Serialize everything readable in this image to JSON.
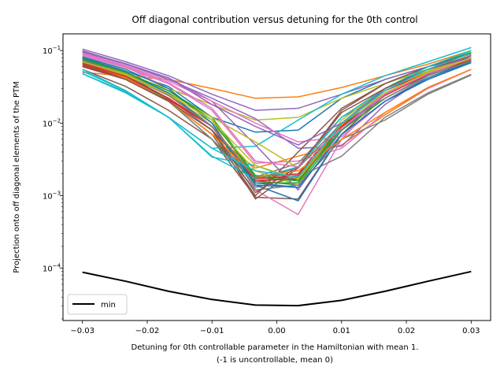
{
  "chart_data": {
    "type": "line",
    "title": "Off diagonal contribution versus detuning for the 0th control",
    "xlabel": "Detuning for 0th controllable parameter in the Hamiltonian with mean 1.",
    "xlabel2": "(-1 is uncontrollable, mean 0)",
    "ylabel": "Projection onto off diagonal elements of the PTM",
    "yscale": "log",
    "xlim": [
      -0.033,
      0.033
    ],
    "ylim": [
      1.9e-05,
      0.17
    ],
    "xticks": [
      -0.03,
      -0.02,
      -0.01,
      0.0,
      0.01,
      0.02,
      0.03
    ],
    "xtick_labels": [
      "−0.03",
      "−0.02",
      "−0.01",
      "0.00",
      "0.01",
      "0.02",
      "0.03"
    ],
    "yticks": [
      0.0001,
      0.001,
      0.01,
      0.1
    ],
    "ytick_labels": [
      "10",
      "10",
      "10",
      "10"
    ],
    "ytick_exponents": [
      "−4",
      "−3",
      "−2",
      "−1"
    ],
    "grid": false,
    "legend_position": "lower-left",
    "x": [
      -0.03,
      -0.0233,
      -0.0167,
      -0.01,
      -0.0033,
      0.0033,
      0.01,
      0.0167,
      0.0233,
      0.03
    ],
    "series": [
      {
        "color": "#1f77b4",
        "values": [
          0.08,
          0.052,
          0.032,
          0.012,
          0.0075,
          0.008,
          0.022,
          0.04,
          0.06,
          0.09
        ]
      },
      {
        "color": "#ff7f0e",
        "values": [
          0.05,
          0.045,
          0.04,
          0.03,
          0.022,
          0.023,
          0.031,
          0.045,
          0.065,
          0.1
        ]
      },
      {
        "color": "#2ca02c",
        "values": [
          0.075,
          0.048,
          0.025,
          0.009,
          0.0016,
          0.0014,
          0.008,
          0.022,
          0.045,
          0.075
        ]
      },
      {
        "color": "#d62728",
        "values": [
          0.06,
          0.04,
          0.02,
          0.008,
          0.0018,
          0.002,
          0.01,
          0.03,
          0.055,
          0.085
        ]
      },
      {
        "color": "#9467bd",
        "values": [
          0.105,
          0.07,
          0.045,
          0.025,
          0.015,
          0.016,
          0.025,
          0.04,
          0.06,
          0.08
        ]
      },
      {
        "color": "#8c564b",
        "values": [
          0.055,
          0.032,
          0.015,
          0.006,
          0.00095,
          0.0009,
          0.007,
          0.025,
          0.05,
          0.085
        ]
      },
      {
        "color": "#e377c2",
        "values": [
          0.09,
          0.06,
          0.03,
          0.01,
          0.0012,
          0.00055,
          0.006,
          0.025,
          0.05,
          0.08
        ]
      },
      {
        "color": "#7f7f7f",
        "values": [
          0.07,
          0.045,
          0.022,
          0.008,
          0.0013,
          0.0018,
          0.0035,
          0.012,
          0.026,
          0.047
        ]
      },
      {
        "color": "#bcbd22",
        "values": [
          0.065,
          0.045,
          0.03,
          0.018,
          0.011,
          0.012,
          0.022,
          0.035,
          0.055,
          0.075
        ]
      },
      {
        "color": "#17becf",
        "values": [
          0.048,
          0.026,
          0.012,
          0.0045,
          0.0048,
          0.011,
          0.025,
          0.045,
          0.07,
          0.11
        ]
      },
      {
        "color": "#1f77b4",
        "values": [
          0.072,
          0.048,
          0.025,
          0.009,
          0.0014,
          0.0013,
          0.007,
          0.02,
          0.04,
          0.068
        ]
      },
      {
        "color": "#ff7f0e",
        "values": [
          0.068,
          0.04,
          0.02,
          0.007,
          0.0024,
          0.0035,
          0.005,
          0.013,
          0.03,
          0.055
        ]
      },
      {
        "color": "#2ca02c",
        "values": [
          0.078,
          0.05,
          0.028,
          0.012,
          0.0019,
          0.0017,
          0.009,
          0.025,
          0.045,
          0.072
        ]
      },
      {
        "color": "#d62728",
        "values": [
          0.065,
          0.042,
          0.021,
          0.009,
          0.0016,
          0.0018,
          0.009,
          0.024,
          0.047,
          0.075
        ]
      },
      {
        "color": "#9467bd",
        "values": [
          0.1,
          0.065,
          0.04,
          0.022,
          0.0115,
          0.0045,
          0.0048,
          0.018,
          0.045,
          0.08
        ]
      },
      {
        "color": "#8c564b",
        "values": [
          0.062,
          0.04,
          0.02,
          0.008,
          0.0009,
          0.0024,
          0.015,
          0.035,
          0.06,
          0.09
        ]
      },
      {
        "color": "#e377c2",
        "values": [
          0.085,
          0.058,
          0.035,
          0.015,
          0.0028,
          0.003,
          0.0045,
          0.014,
          0.03,
          0.055
        ]
      },
      {
        "color": "#7f7f7f",
        "values": [
          0.075,
          0.048,
          0.025,
          0.009,
          0.0018,
          0.0028,
          0.012,
          0.025,
          0.048,
          0.077
        ]
      },
      {
        "color": "#bcbd22",
        "values": [
          0.072,
          0.046,
          0.024,
          0.01,
          0.0022,
          0.0014,
          0.011,
          0.03,
          0.052,
          0.08
        ]
      },
      {
        "color": "#17becf",
        "values": [
          0.055,
          0.028,
          0.012,
          0.0034,
          0.0026,
          0.0016,
          0.0085,
          0.025,
          0.05,
          0.085
        ]
      },
      {
        "color": "#1f77b4",
        "values": [
          0.082,
          0.055,
          0.03,
          0.01,
          0.0014,
          0.00085,
          0.007,
          0.02,
          0.04,
          0.07
        ]
      },
      {
        "color": "#ff7f0e",
        "values": [
          0.078,
          0.05,
          0.026,
          0.009,
          0.0018,
          0.0016,
          0.0095,
          0.028,
          0.05,
          0.08
        ]
      },
      {
        "color": "#2ca02c",
        "values": [
          0.08,
          0.05,
          0.02,
          0.006,
          0.0015,
          0.0015,
          0.009,
          0.03,
          0.06,
          0.095
        ]
      },
      {
        "color": "#d62728",
        "values": [
          0.07,
          0.048,
          0.024,
          0.009,
          0.0016,
          0.0017,
          0.01,
          0.028,
          0.05,
          0.08
        ]
      },
      {
        "color": "#9467bd",
        "values": [
          0.095,
          0.065,
          0.042,
          0.02,
          0.005,
          0.0012,
          0.008,
          0.025,
          0.05,
          0.08
        ]
      },
      {
        "color": "#8c564b",
        "values": [
          0.072,
          0.042,
          0.02,
          0.007,
          0.001,
          0.004,
          0.016,
          0.035,
          0.06,
          0.09
        ]
      },
      {
        "color": "#e377c2",
        "values": [
          0.092,
          0.062,
          0.038,
          0.02,
          0.01,
          0.0055,
          0.0065,
          0.02,
          0.045,
          0.08
        ]
      },
      {
        "color": "#7f7f7f",
        "values": [
          0.07,
          0.045,
          0.02,
          0.006,
          0.0012,
          0.0014,
          0.006,
          0.011,
          0.025,
          0.046
        ]
      },
      {
        "color": "#bcbd22",
        "values": [
          0.075,
          0.048,
          0.026,
          0.012,
          0.0055,
          0.0024,
          0.012,
          0.03,
          0.052,
          0.08
        ]
      },
      {
        "color": "#17becf",
        "values": [
          0.048,
          0.027,
          0.012,
          0.0035,
          0.0017,
          0.0025,
          0.012,
          0.03,
          0.06,
          0.1
        ]
      },
      {
        "color": "#1f77b4",
        "values": [
          0.078,
          0.05,
          0.026,
          0.009,
          0.0015,
          0.0013,
          0.007,
          0.02,
          0.042,
          0.072
        ]
      },
      {
        "color": "#ff7f0e",
        "values": [
          0.07,
          0.042,
          0.02,
          0.007,
          0.0018,
          0.0022,
          0.006,
          0.014,
          0.031,
          0.055
        ]
      },
      {
        "color": "#2ca02c",
        "values": [
          0.075,
          0.05,
          0.028,
          0.011,
          0.0018,
          0.0016,
          0.008,
          0.022,
          0.045,
          0.072
        ]
      },
      {
        "color": "#d62728",
        "values": [
          0.068,
          0.044,
          0.022,
          0.009,
          0.0017,
          0.0019,
          0.009,
          0.025,
          0.048,
          0.077
        ]
      },
      {
        "color": "#9467bd",
        "values": [
          0.098,
          0.066,
          0.042,
          0.018,
          0.009,
          0.005,
          0.01,
          0.03,
          0.055,
          0.08
        ]
      },
      {
        "color": "#8c564b",
        "values": [
          0.064,
          0.04,
          0.02,
          0.008,
          0.0011,
          0.0025,
          0.014,
          0.03,
          0.055,
          0.085
        ]
      },
      {
        "color": "#e377c2",
        "values": [
          0.088,
          0.06,
          0.036,
          0.016,
          0.003,
          0.0025,
          0.0085,
          0.025,
          0.048,
          0.078
        ]
      },
      {
        "color": "#7f7f7f",
        "values": [
          0.073,
          0.046,
          0.024,
          0.009,
          0.0017,
          0.0024,
          0.01,
          0.022,
          0.045,
          0.072
        ]
      },
      {
        "color": "#bcbd22",
        "values": [
          0.07,
          0.046,
          0.025,
          0.011,
          0.0026,
          0.0017,
          0.01,
          0.026,
          0.05,
          0.078
        ]
      },
      {
        "color": "#17becf",
        "values": [
          0.052,
          0.028,
          0.012,
          0.0045,
          0.0022,
          0.0018,
          0.01,
          0.028,
          0.055,
          0.092
        ]
      }
    ],
    "min_series": {
      "name": "min",
      "color": "#000000",
      "values": [
        8.8e-05,
        6.6e-05,
        4.8e-05,
        3.7e-05,
        3.1e-05,
        3.05e-05,
        3.6e-05,
        4.8e-05,
        6.6e-05,
        9e-05
      ]
    }
  }
}
